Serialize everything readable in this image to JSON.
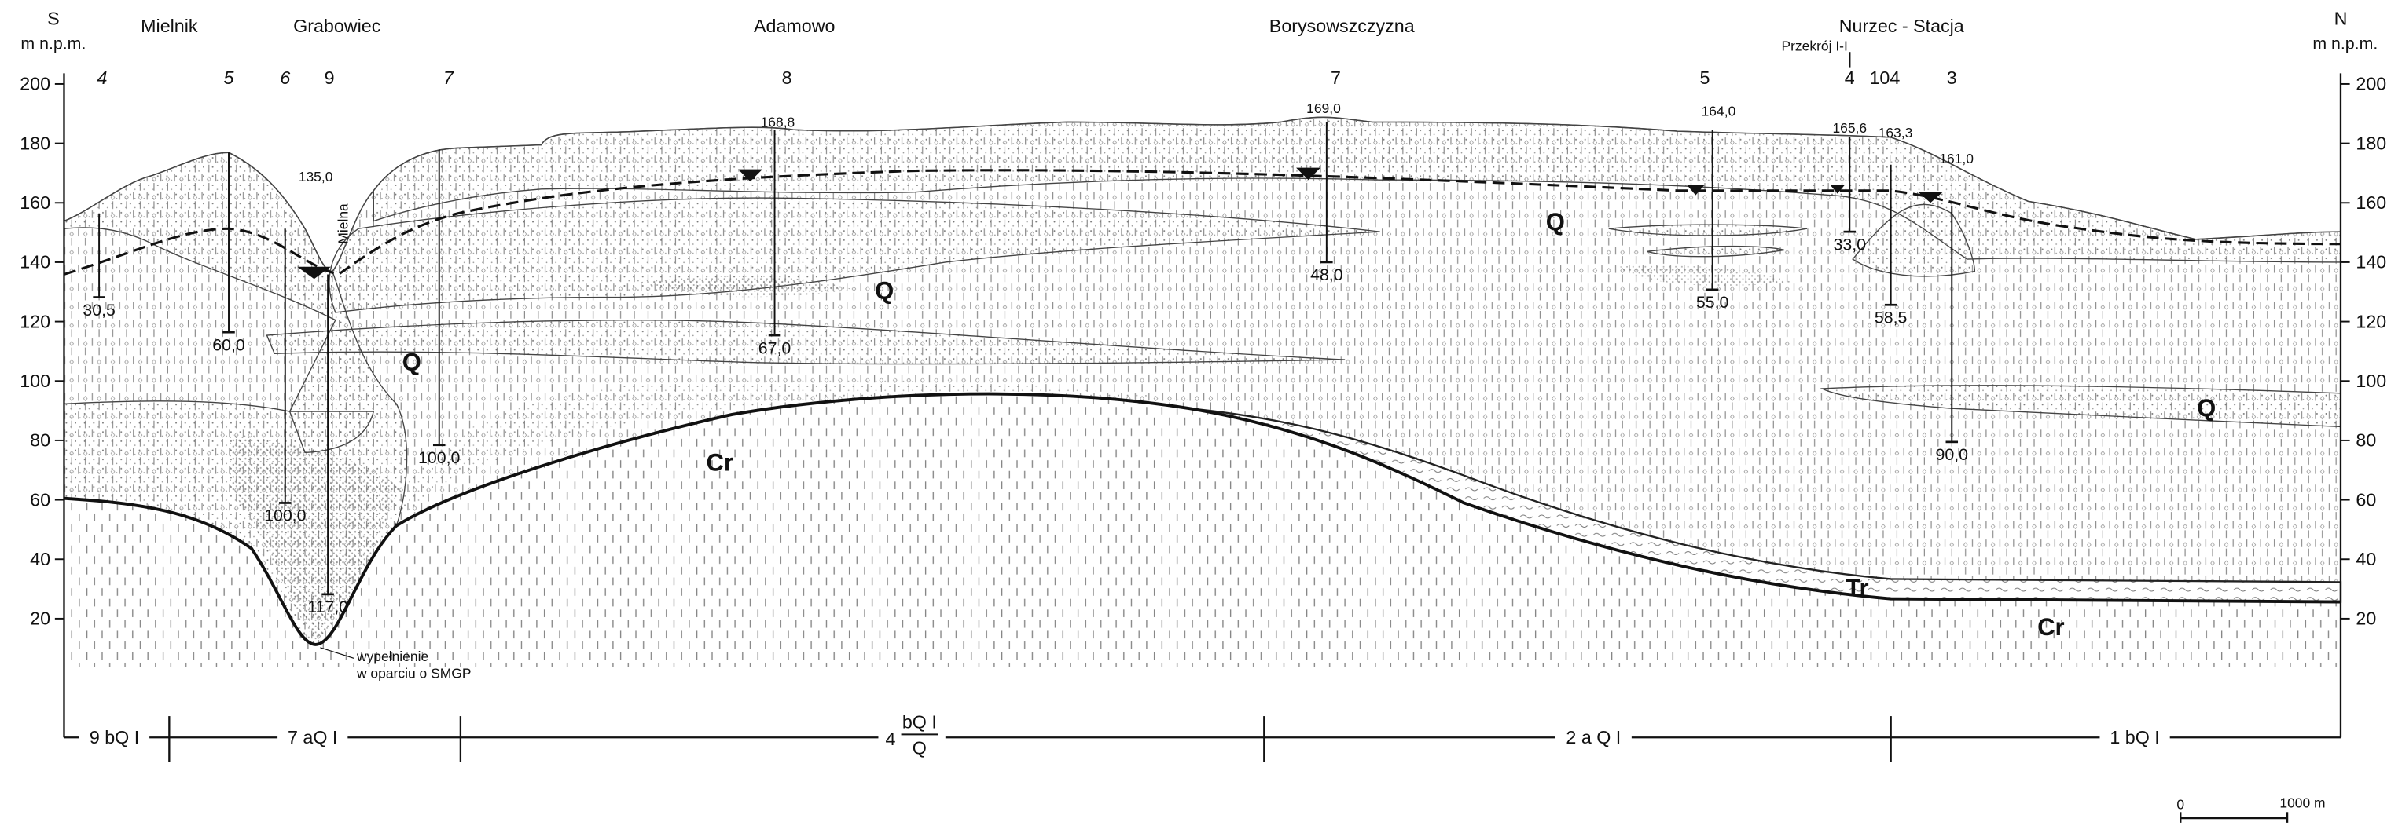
{
  "header": {
    "south": "S",
    "north": "N",
    "unit_left": "m n.p.m.",
    "unit_right": "m n.p.m.",
    "section": "Przekrój I-I"
  },
  "localities": [
    "Mielnik",
    "Grabowiec",
    "Adamowo",
    "Borysowszczyzna",
    "Nurzec - Stacja"
  ],
  "well_numbers": [
    "4",
    "5",
    "6",
    "9",
    "7",
    "8",
    "7",
    "5",
    "4",
    "104",
    "3"
  ],
  "axis": {
    "ticks": [
      200,
      180,
      160,
      140,
      120,
      100,
      80,
      60,
      40,
      20
    ]
  },
  "surface_elevations": [
    "135,0",
    "168,8",
    "169,0",
    "164,0",
    "165,6",
    "163,3",
    "161,0"
  ],
  "well_depths": [
    "30,5",
    "60,0",
    "100,0",
    "117,0",
    "100,0",
    "67,0",
    "48,0",
    "55,0",
    "33,0",
    "58,5",
    "90,0"
  ],
  "units": [
    "Q",
    "Q",
    "Q",
    "Q",
    "Cr",
    "Cr",
    "Tr"
  ],
  "river": "Mielna",
  "note": [
    "wypełnienie",
    "w oparciu o SMGP"
  ],
  "segments": [
    {
      "label": "9 bQ I"
    },
    {
      "label": "7 aQ I"
    },
    {
      "number": "4",
      "numerator": "bQ I",
      "denominator": "Q"
    },
    {
      "label": "2 a Q I"
    },
    {
      "label": "1 bQ I"
    }
  ],
  "scale": {
    "start": "0",
    "end": "1000 m"
  }
}
